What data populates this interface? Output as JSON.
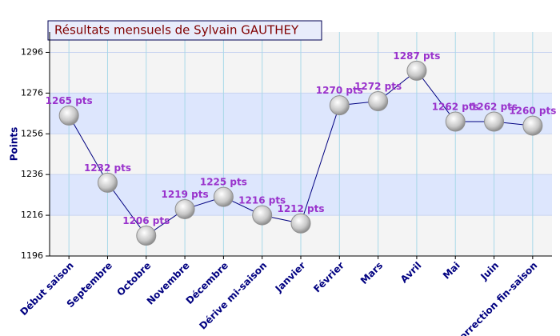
{
  "chart_data": {
    "type": "line",
    "title": "Résultats mensuels de Sylvain GAUTHEY",
    "y_label": "Points",
    "categories": [
      "Début saison",
      "Septembre",
      "Octobre",
      "Novembre",
      "Décembre",
      "Dérive mi-saison",
      "Janvier",
      "Février",
      "Mars",
      "Avril",
      "Mai",
      "Juin",
      "Correction fin-saison"
    ],
    "series": [
      {
        "name": "Points",
        "color": "#000080",
        "values": [
          1265,
          1232,
          1206,
          1219,
          1225,
          1216,
          1212,
          1270,
          1272,
          1287,
          1262,
          1262,
          1260
        ],
        "value_labels": [
          "1265 pts",
          "1232 pts",
          "1206 pts",
          "1219 pts",
          "1225 pts",
          "1216 pts",
          "1212 pts",
          "1270 pts",
          "1272 pts",
          "1287 pts",
          "1262 pts",
          "1262 pts",
          "1260 pts"
        ]
      }
    ],
    "ylim": [
      1196,
      1306
    ],
    "yticks": [
      1196,
      1216,
      1236,
      1256,
      1276,
      1296
    ],
    "grid": true
  }
}
